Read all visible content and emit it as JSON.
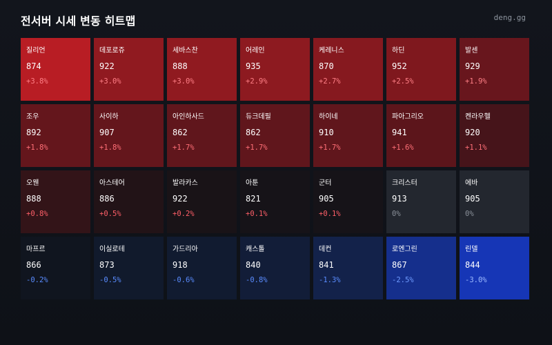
{
  "header": {
    "title": "전서버 시세 변동 히트맵",
    "brand": "deng.gg"
  },
  "tiles": [
    {
      "name": "질리언",
      "price": "874",
      "change": "+3.8%",
      "bg": "#b81d24",
      "change_color": "#ff7f86"
    },
    {
      "name": "데포로쥬",
      "price": "922",
      "change": "+3.0%",
      "bg": "#901a20",
      "change_color": "#ff7f86"
    },
    {
      "name": "세바스찬",
      "price": "888",
      "change": "+3.0%",
      "bg": "#901a20",
      "change_color": "#ff7f86"
    },
    {
      "name": "어레인",
      "price": "935",
      "change": "+2.9%",
      "bg": "#8d1a20",
      "change_color": "#ff7f86"
    },
    {
      "name": "케레니스",
      "price": "870",
      "change": "+2.7%",
      "bg": "#86191f",
      "change_color": "#ff7f86"
    },
    {
      "name": "하딘",
      "price": "952",
      "change": "+2.5%",
      "bg": "#7f181e",
      "change_color": "#ff7f86"
    },
    {
      "name": "발센",
      "price": "929",
      "change": "+1.9%",
      "bg": "#68161d",
      "change_color": "#ff7f86"
    },
    {
      "name": "조우",
      "price": "892",
      "change": "+1.8%",
      "bg": "#64161c",
      "change_color": "#ff6f77"
    },
    {
      "name": "사이하",
      "price": "907",
      "change": "+1.8%",
      "bg": "#64161c",
      "change_color": "#ff6f77"
    },
    {
      "name": "아인하사드",
      "price": "862",
      "change": "+1.7%",
      "bg": "#60161c",
      "change_color": "#ff6f77"
    },
    {
      "name": "듀크데필",
      "price": "862",
      "change": "+1.7%",
      "bg": "#60161c",
      "change_color": "#ff6f77"
    },
    {
      "name": "하이네",
      "price": "910",
      "change": "+1.7%",
      "bg": "#60161c",
      "change_color": "#ff6f77"
    },
    {
      "name": "파아그리오",
      "price": "941",
      "change": "+1.6%",
      "bg": "#5c151b",
      "change_color": "#ff6f77"
    },
    {
      "name": "켄라우헬",
      "price": "920",
      "change": "+1.1%",
      "bg": "#46141a",
      "change_color": "#ff6f77"
    },
    {
      "name": "오웬",
      "price": "888",
      "change": "+0.8%",
      "bg": "#331418",
      "change_color": "#ff5f68"
    },
    {
      "name": "아스테어",
      "price": "886",
      "change": "+0.5%",
      "bg": "#221317",
      "change_color": "#ff5f68"
    },
    {
      "name": "발라카스",
      "price": "922",
      "change": "+0.2%",
      "bg": "#191317",
      "change_color": "#ff5f68"
    },
    {
      "name": "아툰",
      "price": "821",
      "change": "+0.1%",
      "bg": "#161318",
      "change_color": "#ff5f68"
    },
    {
      "name": "군터",
      "price": "905",
      "change": "+0.1%",
      "bg": "#161318",
      "change_color": "#ff5f68"
    },
    {
      "name": "크리스터",
      "price": "913",
      "change": "0%",
      "bg": "#23272f",
      "change_color": "#8a9099"
    },
    {
      "name": "에바",
      "price": "905",
      "change": "0%",
      "bg": "#23272f",
      "change_color": "#8a9099"
    },
    {
      "name": "마프르",
      "price": "866",
      "change": "-0.2%",
      "bg": "#10151f",
      "change_color": "#5a8cff"
    },
    {
      "name": "이실로테",
      "price": "873",
      "change": "-0.5%",
      "bg": "#111a2c",
      "change_color": "#5a8cff"
    },
    {
      "name": "가드리아",
      "price": "918",
      "change": "-0.6%",
      "bg": "#111b30",
      "change_color": "#5a8cff"
    },
    {
      "name": "캐스톨",
      "price": "840",
      "change": "-0.8%",
      "bg": "#121d38",
      "change_color": "#5a8cff"
    },
    {
      "name": "데컨",
      "price": "841",
      "change": "-1.3%",
      "bg": "#13224a",
      "change_color": "#5a8cff"
    },
    {
      "name": "로엔그린",
      "price": "867",
      "change": "-2.5%",
      "bg": "#152f8c",
      "change_color": "#6f9bff"
    },
    {
      "name": "린델",
      "price": "844",
      "change": "-3.0%",
      "bg": "#1636b6",
      "change_color": "#9dbaff"
    }
  ]
}
